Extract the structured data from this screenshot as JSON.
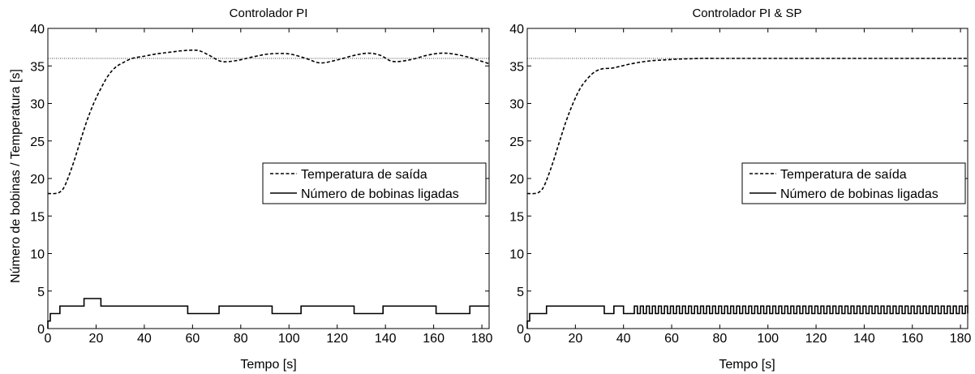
{
  "figure": {
    "shared_ylabel": "Número de bobinas   /   Temperatura [s]"
  },
  "chart_data": [
    {
      "type": "line",
      "title": "Controlador PI",
      "xlabel": "Tempo [s]",
      "ylabel": "",
      "xlim": [
        0,
        183
      ],
      "ylim": [
        0,
        40
      ],
      "xticks": [
        0,
        20,
        40,
        60,
        80,
        100,
        120,
        140,
        160,
        180
      ],
      "yticks": [
        0,
        5,
        10,
        15,
        20,
        25,
        30,
        35,
        40
      ],
      "grid": false,
      "legend_position": "center-right",
      "reference_line": {
        "y": 36,
        "style": "dotted"
      },
      "series": [
        {
          "name": "Temperatura de saída",
          "style": "dashed",
          "x": [
            0,
            3,
            5,
            7,
            10,
            13,
            16,
            19,
            22,
            25,
            28,
            31,
            35,
            40,
            45,
            50,
            55,
            60,
            63,
            67,
            72,
            78,
            85,
            92,
            100,
            107,
            113,
            120,
            127,
            133,
            138,
            143,
            150,
            157,
            163,
            168,
            174,
            178,
            183
          ],
          "y": [
            18,
            18,
            18.2,
            19,
            21.5,
            24.5,
            27.5,
            30,
            32,
            33.7,
            34.8,
            35.4,
            36,
            36.3,
            36.6,
            36.8,
            37,
            37.1,
            37,
            36.4,
            35.6,
            35.7,
            36.2,
            36.6,
            36.6,
            36,
            35.4,
            35.8,
            36.4,
            36.7,
            36.4,
            35.6,
            35.8,
            36.4,
            36.7,
            36.6,
            36.2,
            35.8,
            35.3
          ]
        },
        {
          "name": "Número de bobinas ligadas",
          "style": "solid",
          "step": true,
          "x": [
            0,
            1,
            5,
            15,
            22,
            58,
            71,
            93,
            105,
            127,
            139,
            161,
            175,
            183
          ],
          "y": [
            1,
            2,
            3,
            4,
            3,
            2,
            3,
            2,
            3,
            2,
            3,
            2,
            3,
            3
          ]
        }
      ]
    },
    {
      "type": "line",
      "title": "Controlador PI & SP",
      "xlabel": "Tempo [s]",
      "ylabel": "",
      "xlim": [
        0,
        183
      ],
      "ylim": [
        0,
        40
      ],
      "xticks": [
        0,
        20,
        40,
        60,
        80,
        100,
        120,
        140,
        160,
        180
      ],
      "yticks": [
        0,
        5,
        10,
        15,
        20,
        25,
        30,
        35,
        40
      ],
      "grid": false,
      "legend_position": "center-right",
      "reference_line": {
        "y": 36,
        "style": "dotted"
      },
      "series": [
        {
          "name": "Temperatura de saída",
          "style": "dashed",
          "x": [
            0,
            3,
            5,
            7,
            10,
            13,
            16,
            19,
            22,
            25,
            28,
            31,
            35,
            38,
            42,
            47,
            52,
            57,
            62,
            67,
            72,
            78,
            85,
            100,
            120,
            140,
            160,
            183
          ],
          "y": [
            18,
            18,
            18.2,
            19,
            21.5,
            24.5,
            27.5,
            30,
            32,
            33.3,
            34.2,
            34.6,
            34.7,
            34.9,
            35.2,
            35.5,
            35.7,
            35.8,
            35.9,
            35.95,
            36,
            36,
            36,
            36,
            36,
            36,
            36,
            36
          ]
        },
        {
          "name": "Número de bobinas ligadas",
          "style": "solid",
          "step": true,
          "oscillating_region": {
            "from": 44.5,
            "to": 183,
            "period": 2.5,
            "low": 2,
            "high": 3
          },
          "x": [
            0,
            1,
            8,
            32,
            36,
            40,
            44.5
          ],
          "y": [
            1,
            2,
            3,
            2,
            3,
            2,
            3
          ]
        }
      ]
    }
  ]
}
